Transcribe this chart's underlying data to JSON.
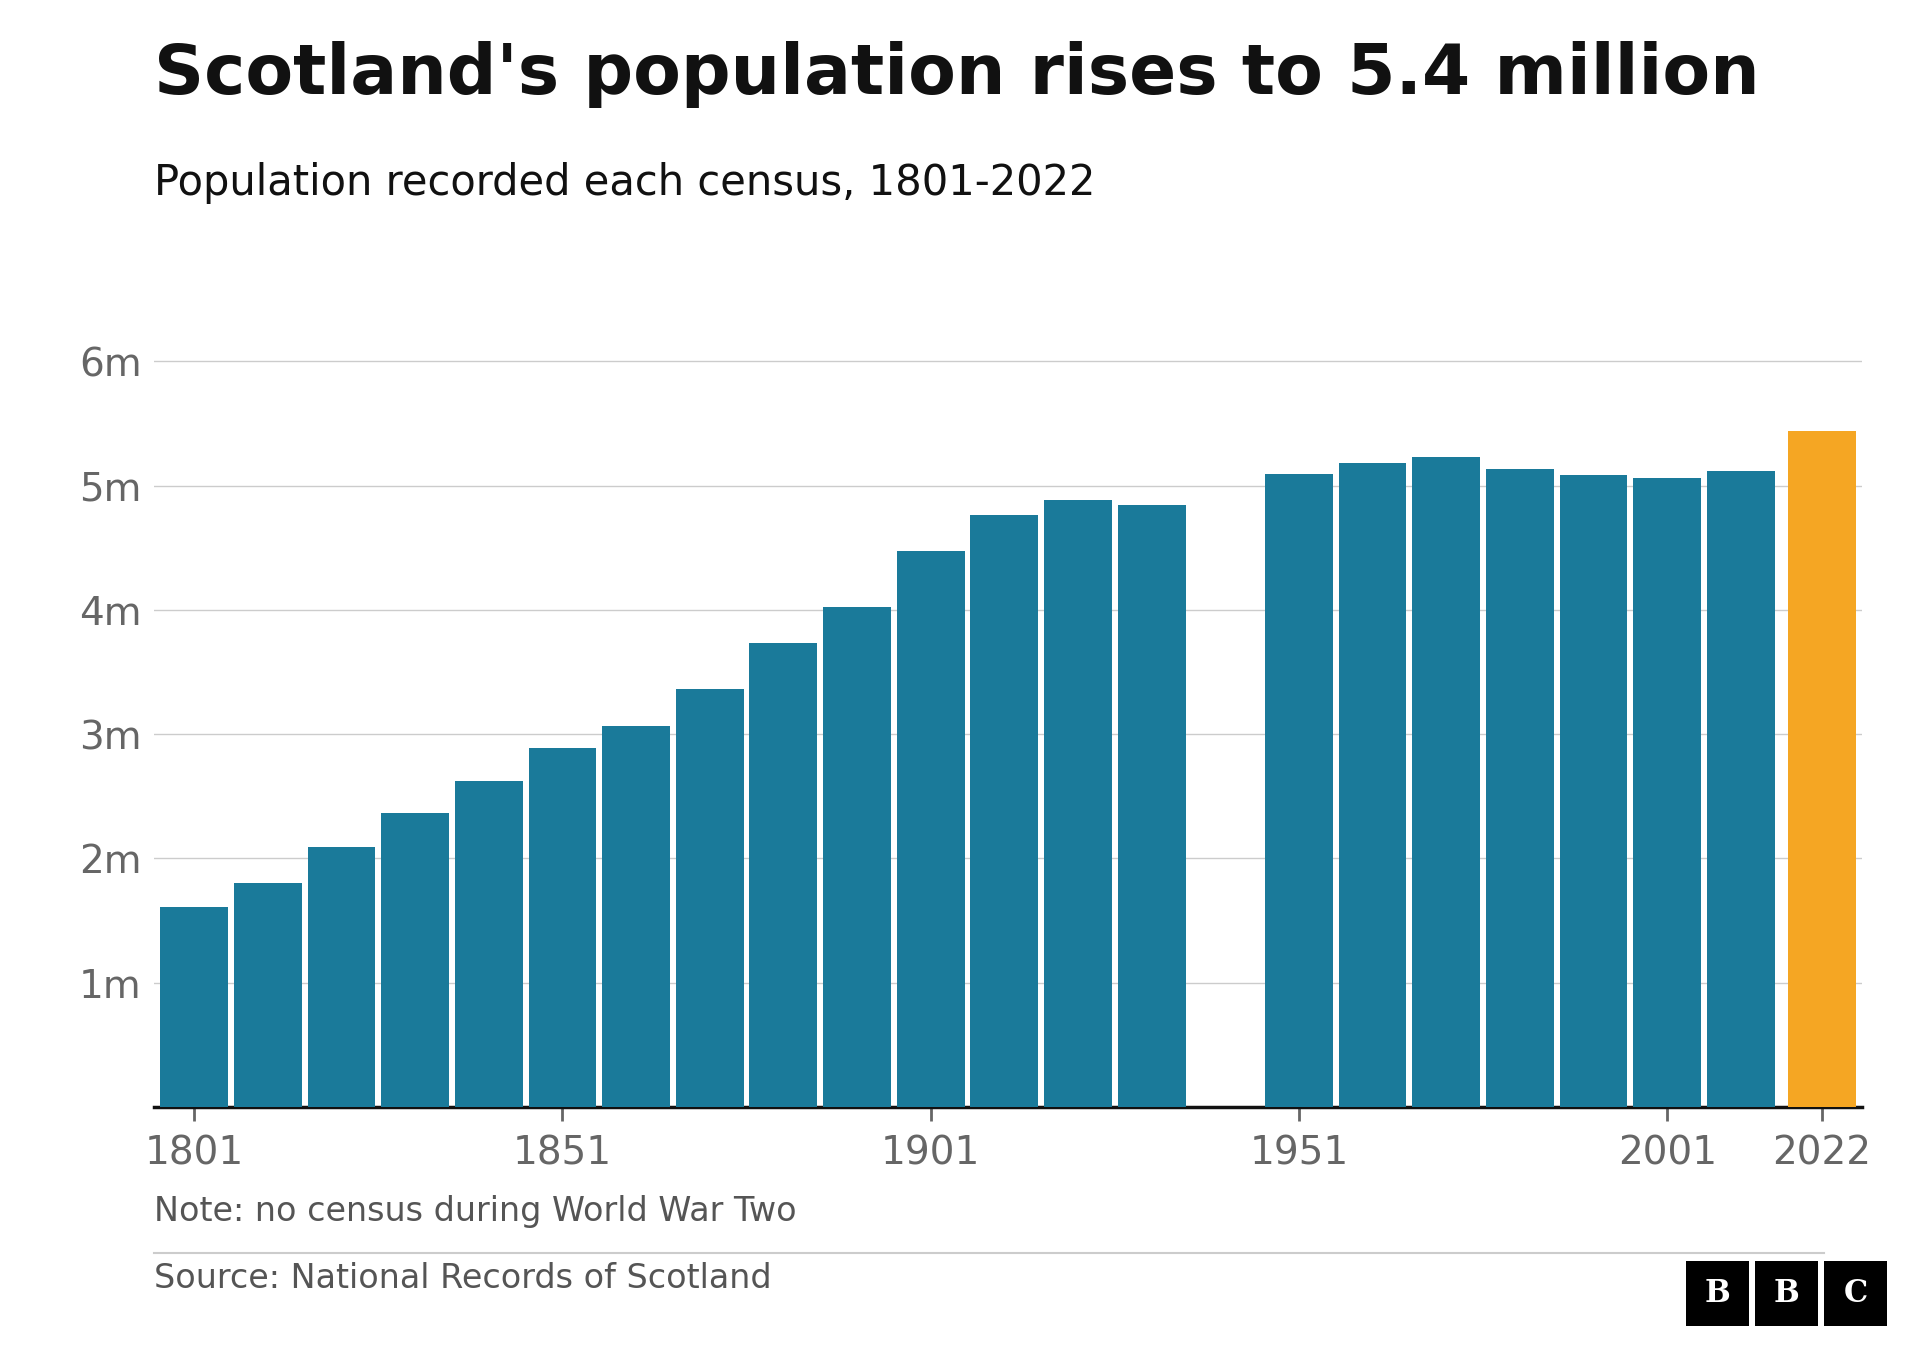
{
  "title": "Scotland's population rises to 5.4 million",
  "subtitle": "Population recorded each census, 1801-2022",
  "note": "Note: no census during World War Two",
  "source": "Source: National Records of Scotland",
  "years": [
    1801,
    1811,
    1821,
    1831,
    1841,
    1851,
    1861,
    1871,
    1881,
    1891,
    1901,
    1911,
    1921,
    1931,
    1951,
    1961,
    1971,
    1981,
    1991,
    2001,
    2011,
    2022
  ],
  "values": [
    1608420,
    1805864,
    2091521,
    2364386,
    2620184,
    2888742,
    3062294,
    3360018,
    3735573,
    4025647,
    4472103,
    4760904,
    4882497,
    4842980,
    5096415,
    5179344,
    5228965,
    5130735,
    5083311,
    5062011,
    5118079,
    5436600
  ],
  "bar_color_teal": "#1a7a9a",
  "bar_color_orange": "#f5a623",
  "highlight_year": 2022,
  "ytick_labels": [
    "1m",
    "2m",
    "3m",
    "4m",
    "5m",
    "6m"
  ],
  "ytick_values": [
    1000000,
    2000000,
    3000000,
    4000000,
    5000000,
    6000000
  ],
  "ylim": [
    0,
    6300000
  ],
  "xtick_years": [
    1801,
    1851,
    1901,
    1951,
    2001,
    2022
  ],
  "background_color": "#ffffff",
  "title_fontsize": 50,
  "subtitle_fontsize": 30,
  "axis_label_fontsize": 28,
  "note_fontsize": 24,
  "source_fontsize": 24
}
